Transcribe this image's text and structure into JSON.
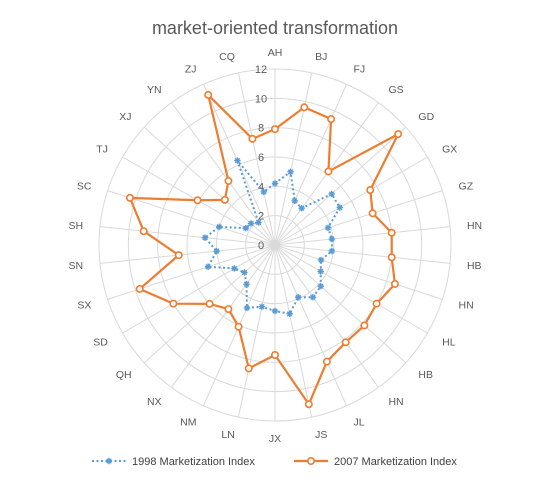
{
  "chart_data": {
    "type": "radar",
    "title": "market-oriented transformation",
    "categories": [
      "AH",
      "BJ",
      "FJ",
      "GS",
      "GD",
      "GX",
      "GZ",
      "HN",
      "HB",
      "HN",
      "HL",
      "HB",
      "HN",
      "JL",
      "JS",
      "JX",
      "LN",
      "NM",
      "NX",
      "QH",
      "SD",
      "SX",
      "SN",
      "SH",
      "SC",
      "TJ",
      "XJ",
      "YN",
      "ZJ",
      "CQ"
    ],
    "rmax": 12,
    "ticks": [
      0,
      2,
      4,
      6,
      8,
      10,
      12
    ],
    "grid": true,
    "legend_position": "bottom",
    "series": [
      {
        "name": "1998 Marketization Index",
        "color": "#5b9bd5",
        "style": "dotted",
        "marker": "star",
        "values": [
          4.2,
          5.1,
          3.3,
          3.1,
          5.2,
          5.1,
          3.8,
          3.9,
          3.9,
          3.3,
          3.6,
          4.2,
          4.4,
          3.9,
          4.8,
          4.5,
          4.3,
          4.7,
          3.3,
          2.8,
          3.2,
          4.8,
          4.0,
          4.8,
          4.0,
          2.3,
          2.2,
          1.9,
          6.3,
          3.7
        ]
      },
      {
        "name": "2007 Marketization Index",
        "color": "#ed7d31",
        "style": "solid",
        "marker": "circle",
        "values": [
          7.9,
          9.6,
          9.4,
          6.2,
          11.3,
          7.5,
          7.0,
          8.0,
          8.0,
          8.6,
          8.0,
          8.2,
          8.2,
          8.7,
          11.1,
          7.5,
          8.6,
          6.1,
          5.4,
          6.0,
          8.0,
          9.7,
          6.6,
          9.0,
          10.4,
          6.1,
          4.6,
          5.4,
          11.2,
          7.4
        ]
      }
    ]
  }
}
